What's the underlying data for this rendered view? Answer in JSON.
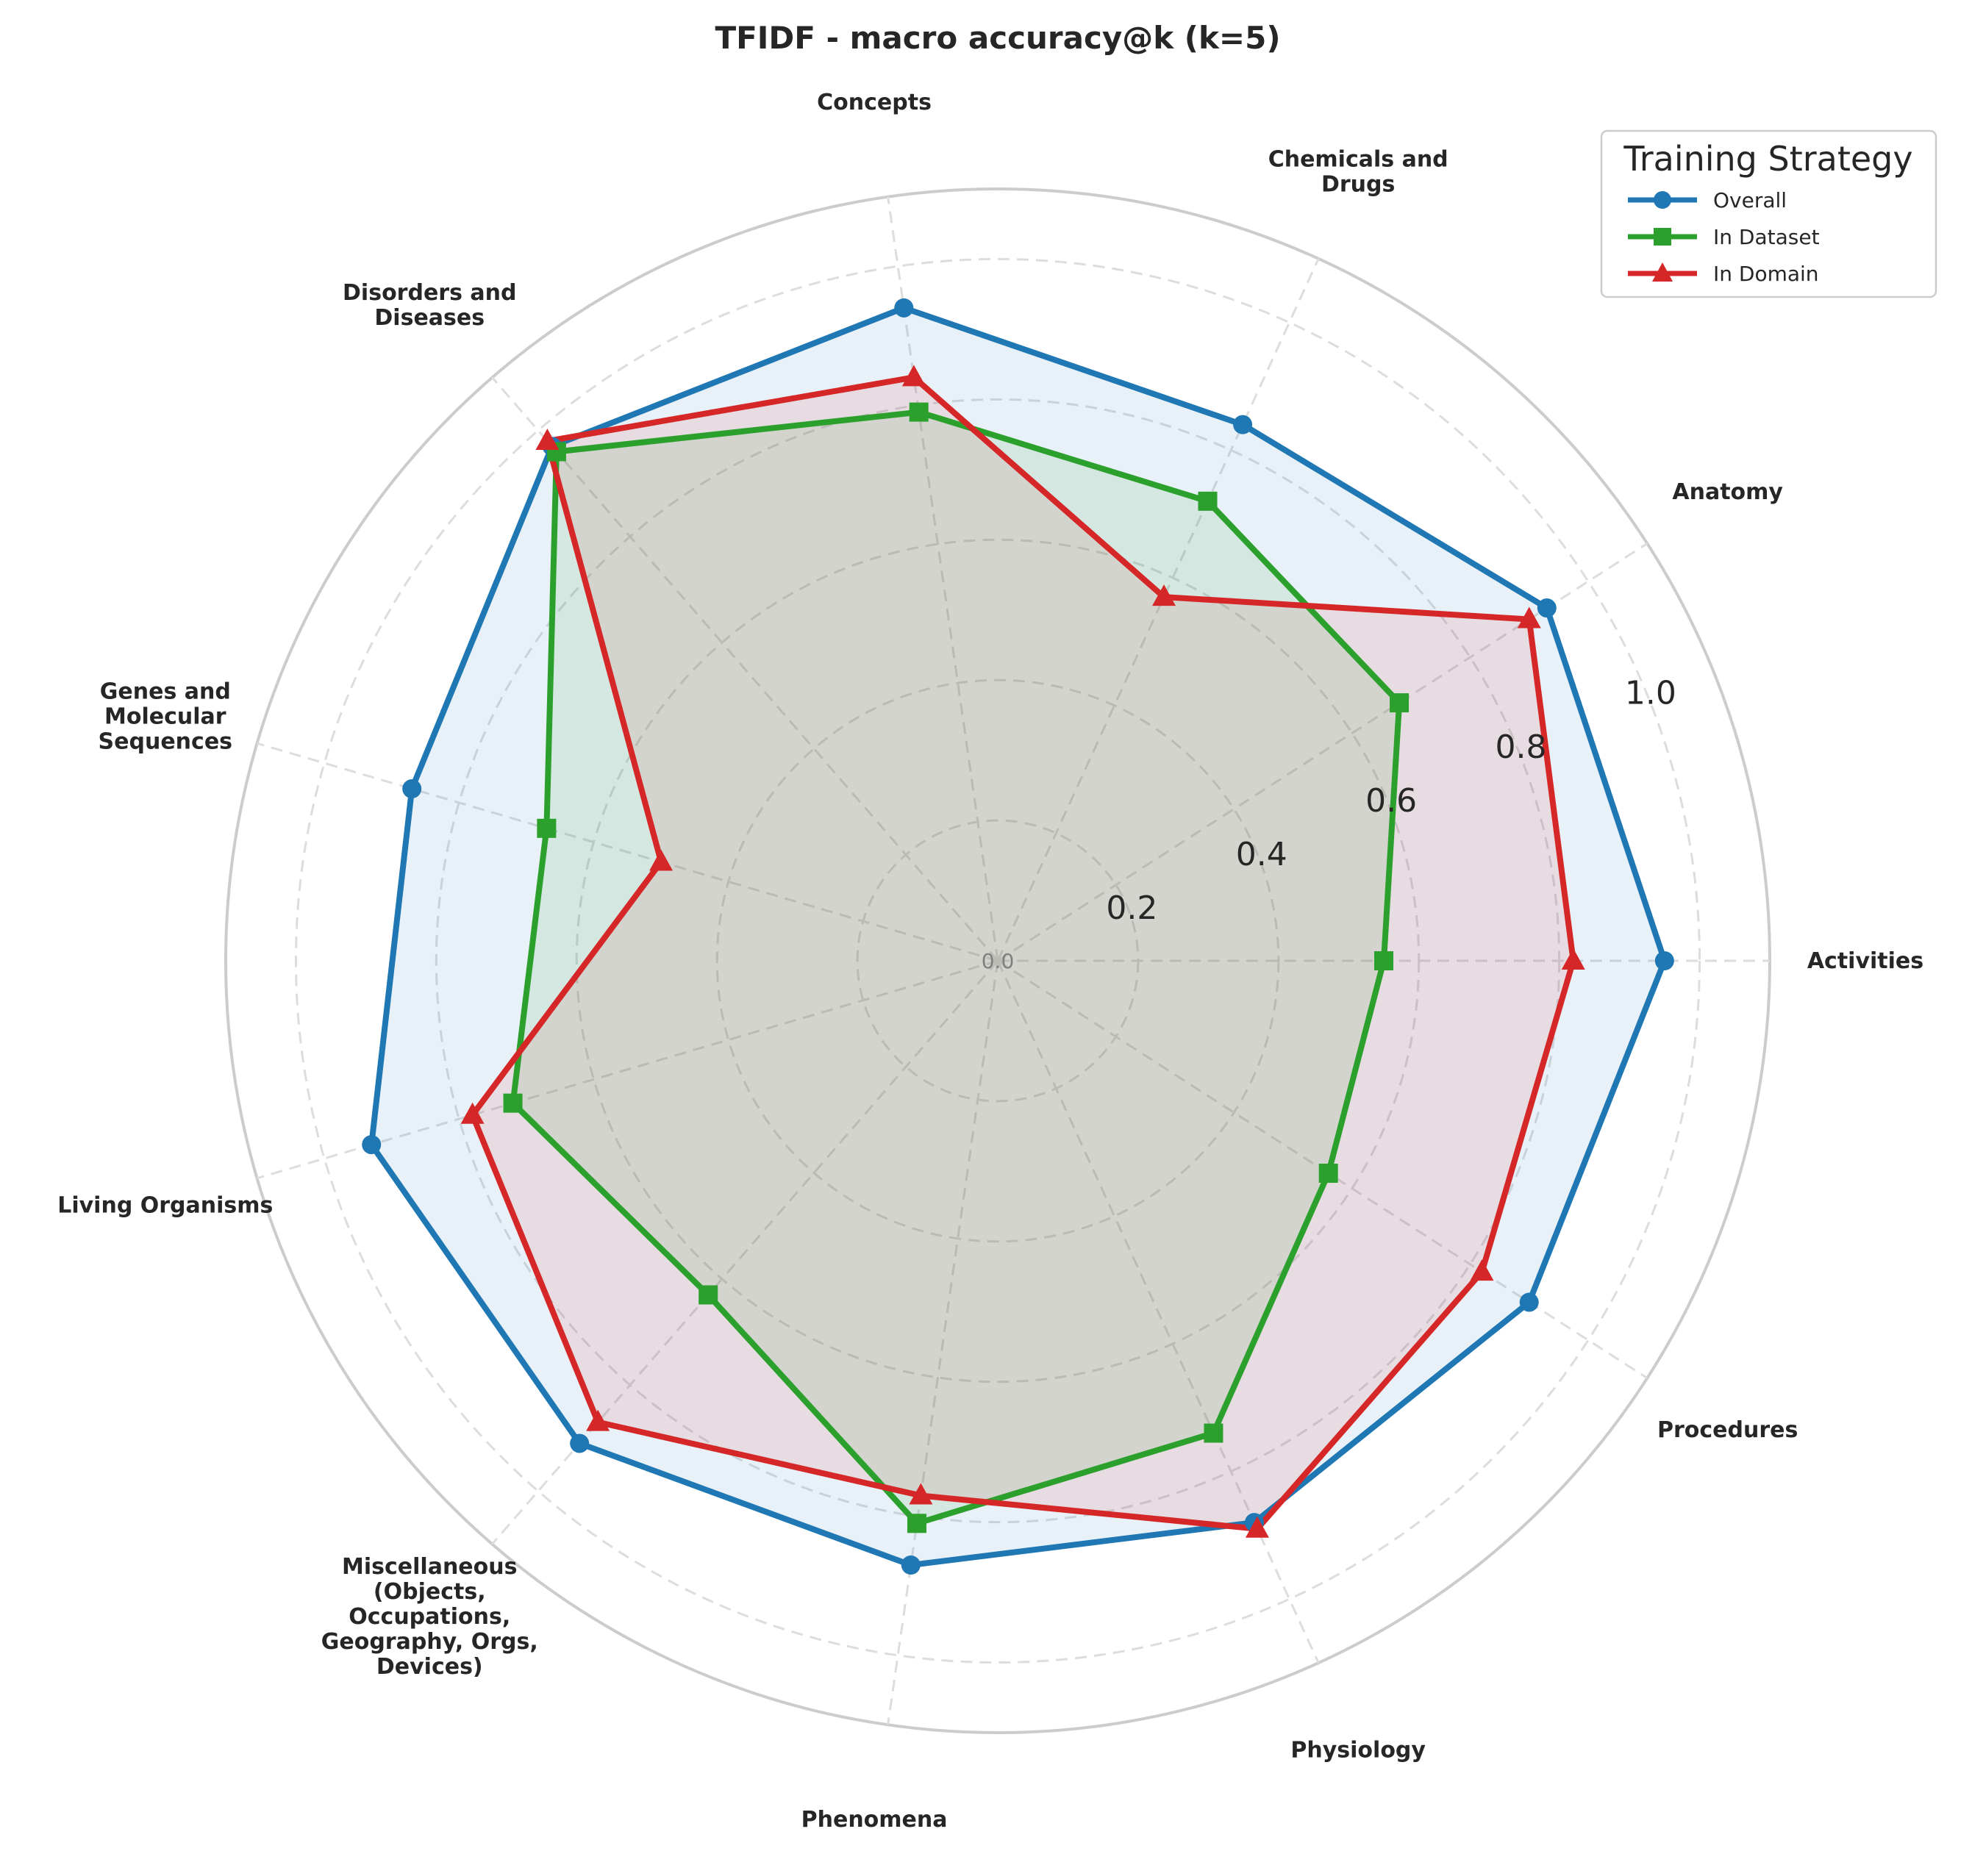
{
  "chart_data": {
    "type": "radar",
    "title": "TFIDF - macro accuracy@k (k=5)",
    "categories": [
      "Activities",
      "Anatomy",
      "Chemicals and Drugs",
      "Concepts",
      "Disorders and Diseases",
      "Genes and Molecular Sequences",
      "Living Organisms",
      "Miscellaneous (Objects, Occupations, Geography, Orgs, Devices)",
      "Phenomena",
      "Physiology",
      "Procedures"
    ],
    "category_label_lines": [
      [
        "Activities"
      ],
      [
        "Anatomy"
      ],
      [
        "Chemicals and",
        "Drugs"
      ],
      [
        "Concepts"
      ],
      [
        "Disorders and",
        "Diseases"
      ],
      [
        "Genes and",
        "Molecular",
        "Sequences"
      ],
      [
        "Living Organisms"
      ],
      [
        "Miscellaneous",
        "(Objects,",
        "Occupations,",
        "Geography, Orgs,",
        "Devices)"
      ],
      [
        "Phenomena"
      ],
      [
        "Physiology"
      ],
      [
        "Procedures"
      ]
    ],
    "radial_ticks": [
      "0.0",
      "0.2",
      "0.4",
      "0.6",
      "0.8",
      "1.0"
    ],
    "rlim": [
      0,
      1.1
    ],
    "grid": true,
    "legend": {
      "title": "Training Strategy",
      "placement": "top-right"
    },
    "series": [
      {
        "name": "Overall",
        "color": "#1f77b4",
        "marker": "circle",
        "values": [
          0.95,
          0.93,
          0.84,
          0.94,
          0.97,
          0.87,
          0.93,
          0.91,
          0.87,
          0.88,
          0.9
        ]
      },
      {
        "name": "In Dataset",
        "color": "#2ca02c",
        "marker": "square",
        "values": [
          0.55,
          0.68,
          0.72,
          0.79,
          0.96,
          0.67,
          0.72,
          0.63,
          0.81,
          0.74,
          0.56
        ]
      },
      {
        "name": "In Domain",
        "color": "#d62728",
        "marker": "triangle",
        "values": [
          0.82,
          0.9,
          0.57,
          0.84,
          0.98,
          0.5,
          0.78,
          0.87,
          0.77,
          0.89,
          0.82
        ]
      }
    ]
  }
}
